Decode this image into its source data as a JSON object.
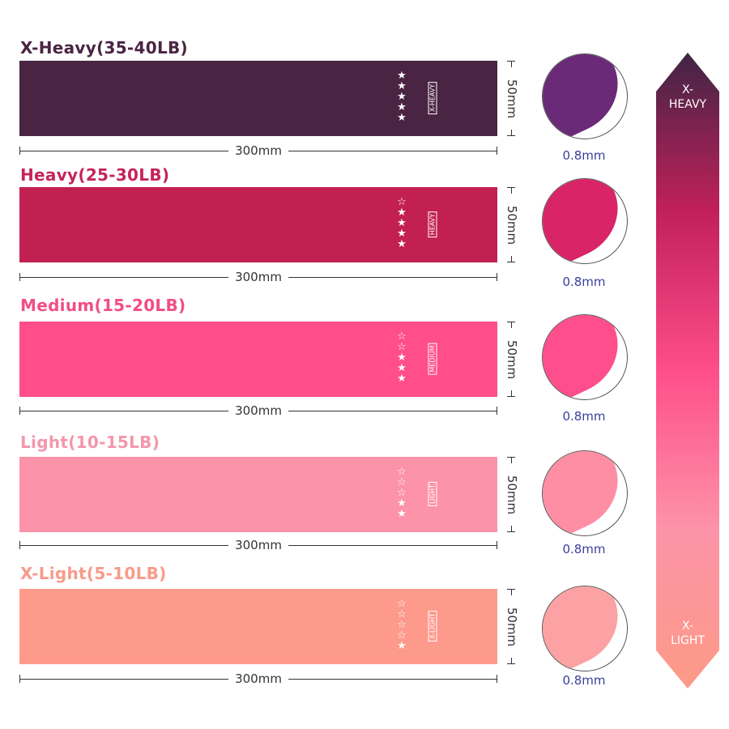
{
  "bands": [
    {
      "title": "X-Heavy(35-40LB)",
      "color": "#4a2443",
      "title_color": "#4a2443",
      "circle_color": "#6a2a78",
      "stars_filled": 5,
      "stars_total": 5,
      "tag": "X-HEAVY",
      "width": "300mm",
      "height": "50mm",
      "thickness": "0.8mm"
    },
    {
      "title": "Heavy(25-30LB)",
      "color": "#c32052",
      "title_color": "#c5245a",
      "circle_color": "#d92468",
      "stars_filled": 4,
      "stars_total": 5,
      "tag": "HEAVY",
      "width": "300mm",
      "height": "50mm",
      "thickness": "0.8mm"
    },
    {
      "title": "Medium(15-20LB)",
      "color": "#ff4e8a",
      "title_color": "#f24d87",
      "circle_color": "#ff4e8c",
      "stars_filled": 3,
      "stars_total": 5,
      "tag": "MEDIUM",
      "width": "300mm",
      "height": "50mm",
      "thickness": "0.8mm"
    },
    {
      "title": "Light(10-15LB)",
      "color": "#fd93a8",
      "title_color": "#f497ab",
      "circle_color": "#fe8ea4",
      "stars_filled": 2,
      "stars_total": 5,
      "tag": "LIGHT",
      "width": "300mm",
      "height": "50mm",
      "thickness": "0.8mm"
    },
    {
      "title": "X-Light(5-10LB)",
      "color": "#fd9a8c",
      "title_color": "#f79b8a",
      "circle_color": "#fca2a4",
      "stars_filled": 1,
      "stars_total": 5,
      "tag": "X-LIGHT",
      "width": "300mm",
      "height": "50mm",
      "thickness": "0.8mm"
    }
  ],
  "scale": {
    "top_label_1": "X-",
    "top_label_2": "HEAVY",
    "bottom_label_1": "X-",
    "bottom_label_2": "LIGHT"
  }
}
